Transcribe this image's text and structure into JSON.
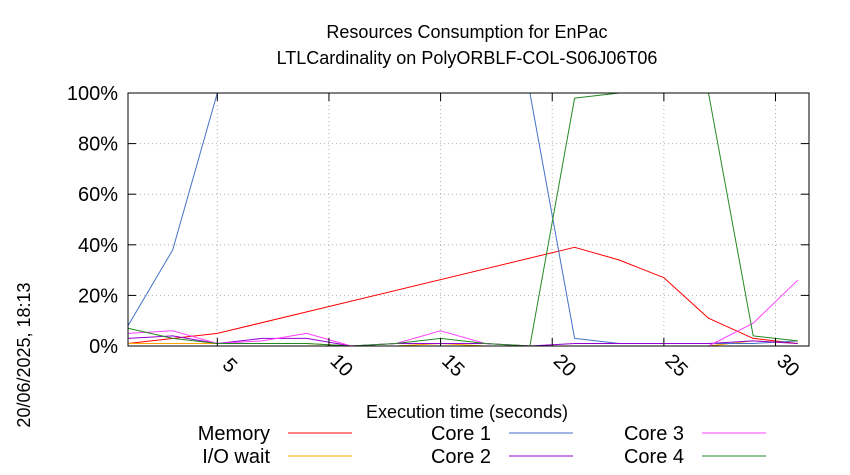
{
  "chart_data": {
    "type": "line",
    "title": "Resources Consumption for EnPac",
    "subtitle": "LTLCardinality on PolyORBLF-COL-S06J06T06",
    "xlabel": "Execution time (seconds)",
    "ylabel": "",
    "side_label": "20/06/2025, 18:13",
    "xlim": [
      1,
      31.5
    ],
    "ylim": [
      0,
      100
    ],
    "x_ticks": [
      5,
      10,
      15,
      20,
      25,
      30
    ],
    "y_ticks": [
      0,
      20,
      40,
      60,
      80,
      100
    ],
    "y_tick_labels": [
      "0%",
      "20%",
      "40%",
      "60%",
      "80%",
      "100%"
    ],
    "grid": true,
    "legend_position": "bottom",
    "series": [
      {
        "name": "Memory",
        "color": "#ff0000",
        "x": [
          1,
          5,
          21,
          23,
          25,
          27,
          29,
          31
        ],
        "y": [
          1,
          5,
          39,
          34,
          27,
          11,
          3,
          1
        ]
      },
      {
        "name": "I/O wait",
        "color": "#ffa500",
        "x": [
          1,
          3,
          5,
          7,
          9,
          11,
          13,
          15,
          17,
          19,
          21,
          23,
          25,
          27,
          29,
          31
        ],
        "y": [
          1,
          1,
          1,
          1,
          1,
          0,
          0,
          1,
          0,
          0,
          0,
          0,
          0,
          0,
          2,
          1
        ]
      },
      {
        "name": "Core 1",
        "color": "#4472c4",
        "x": [
          1,
          3,
          5,
          7,
          9,
          11,
          13,
          15,
          17,
          19,
          21,
          23,
          25,
          27,
          29,
          31
        ],
        "y": [
          8,
          38,
          100,
          100,
          100,
          100,
          100,
          100,
          100,
          100,
          3,
          1,
          1,
          1,
          1,
          2
        ]
      },
      {
        "name": "Core 2",
        "color": "#9400d3",
        "x": [
          1,
          3,
          5,
          7,
          9,
          11,
          13,
          15,
          17,
          19,
          21,
          23,
          25,
          27,
          29,
          31
        ],
        "y": [
          3,
          4,
          1,
          3,
          3,
          0,
          1,
          1,
          1,
          0,
          1,
          1,
          1,
          1,
          2,
          1
        ]
      },
      {
        "name": "Core 3",
        "color": "#ff40ff",
        "x": [
          1,
          3,
          5,
          7,
          9,
          11,
          13,
          15,
          17,
          19,
          21,
          23,
          25,
          27,
          29,
          31
        ],
        "y": [
          5,
          6,
          1,
          2,
          5,
          0,
          1,
          6,
          1,
          0,
          0,
          0,
          0,
          0,
          9,
          26
        ]
      },
      {
        "name": "Core 4",
        "color": "#228b22",
        "x": [
          1,
          3,
          5,
          7,
          9,
          11,
          13,
          15,
          17,
          19,
          21,
          23,
          25,
          27,
          29,
          31
        ],
        "y": [
          7,
          3,
          1,
          1,
          1,
          0,
          1,
          3,
          1,
          0,
          98,
          100,
          100,
          100,
          4,
          2
        ]
      }
    ]
  }
}
